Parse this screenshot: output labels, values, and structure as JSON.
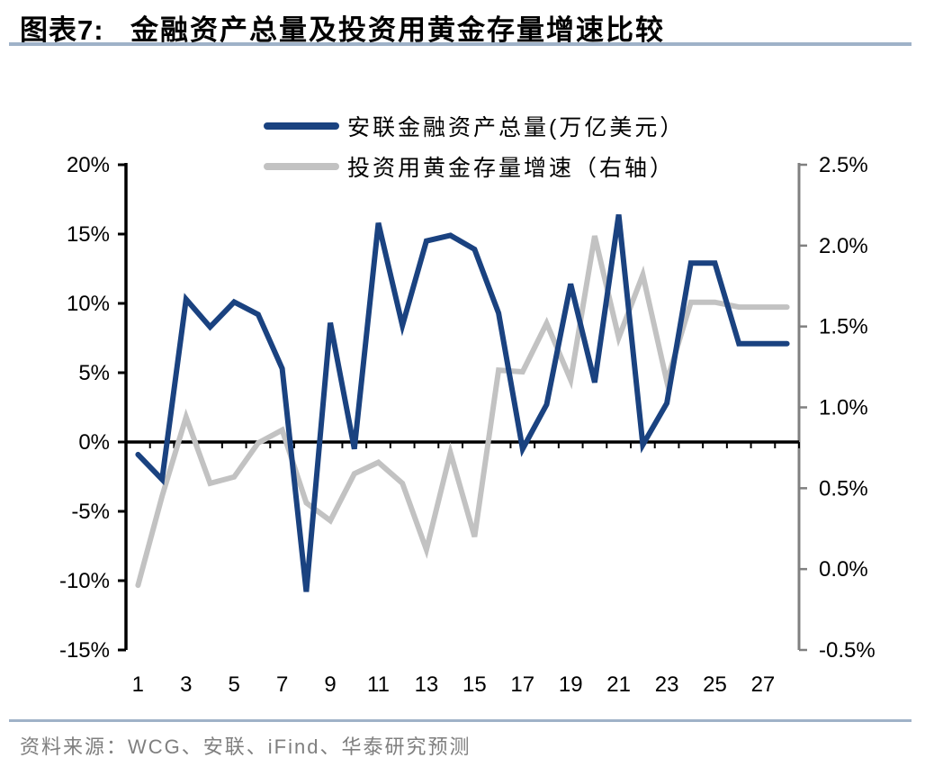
{
  "header": {
    "tag": "图表7:",
    "title": "金融资产总量及投资用黄金存量增速比较"
  },
  "legend": {
    "items": [
      {
        "label": "安联金融资产总量(万亿美元）",
        "color": "#1a4280"
      },
      {
        "label": "投资用黄金存量增速（右轴）",
        "color": "#c2c2c2"
      }
    ]
  },
  "chart_data": {
    "type": "line",
    "title": "金融资产总量及投资用黄金存量增速比较",
    "categories": [
      1,
      2,
      3,
      4,
      5,
      6,
      7,
      8,
      9,
      10,
      11,
      12,
      13,
      14,
      15,
      16,
      17,
      18,
      19,
      20,
      21,
      22,
      23,
      24,
      25,
      26,
      27,
      28
    ],
    "x_tick_labels": [
      "1",
      "3",
      "5",
      "7",
      "9",
      "11",
      "13",
      "15",
      "17",
      "19",
      "21",
      "23",
      "25",
      "27"
    ],
    "series": [
      {
        "name": "安联金融资产总量(万亿美元）",
        "axis": "left",
        "color": "#1a4280",
        "unit": "%",
        "values": [
          -0.9,
          -2.7,
          10.3,
          8.3,
          10.1,
          9.2,
          5.3,
          -10.8,
          8.6,
          -0.5,
          15.8,
          8.4,
          14.5,
          14.9,
          13.9,
          9.3,
          -0.5,
          2.7,
          11.4,
          4.3,
          16.4,
          -0.2,
          2.8,
          12.9,
          12.9,
          7.1,
          7.1,
          7.1
        ]
      },
      {
        "name": "投资用黄金存量增速（右轴）",
        "axis": "right",
        "color": "#c2c2c2",
        "unit": "%",
        "values": [
          -0.1,
          0.45,
          0.94,
          0.53,
          0.57,
          0.78,
          0.86,
          0.41,
          0.3,
          0.59,
          0.66,
          0.53,
          0.12,
          0.72,
          0.2,
          1.23,
          1.22,
          1.52,
          1.17,
          2.06,
          1.43,
          1.82,
          1.16,
          1.65,
          1.65,
          1.62,
          1.62,
          1.62
        ]
      }
    ],
    "left_axis": {
      "max": 20,
      "min": -15,
      "tick_step": 5,
      "tick_labels": [
        "20%",
        "15%",
        "10%",
        "5%",
        "0%",
        "-5%",
        "-10%",
        "-15%"
      ]
    },
    "right_axis": {
      "max": 2.5,
      "min": -0.5,
      "tick_step": 0.5,
      "tick_labels": [
        "2.5%",
        "2.0%",
        "1.5%",
        "1.0%",
        "0.5%",
        "0.0%",
        "-0.5%"
      ]
    },
    "grid": false,
    "legend_position": "top-center",
    "axis_colors": {
      "left": "#000000",
      "right": "#808080",
      "zero_line": "#000000"
    }
  },
  "footer": {
    "source": "资料来源：WCG、安联、iFind、华泰研究预测"
  }
}
